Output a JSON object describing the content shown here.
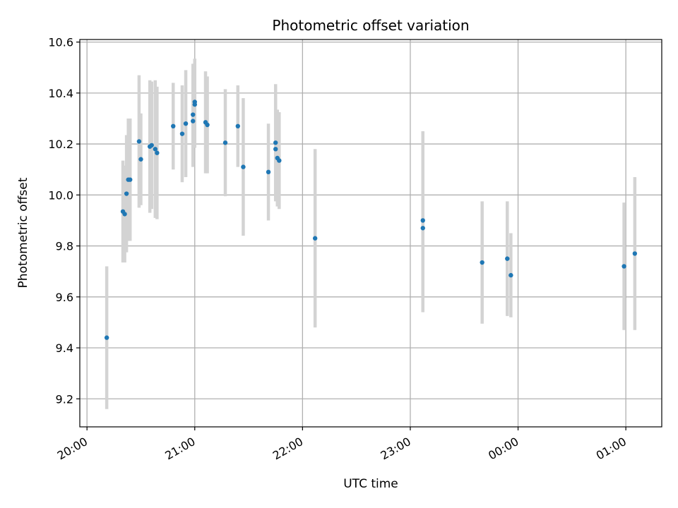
{
  "chart_data": {
    "type": "scatter",
    "title": "Photometric offset variation",
    "xlabel": "UTC time",
    "ylabel": "Photometric offset",
    "x_unit": "UTC time (HH:MM)",
    "xlim": [
      "19:56",
      "01:20"
    ],
    "ylim": [
      9.09,
      10.61
    ],
    "x_ticks": [
      "20:00",
      "21:00",
      "22:00",
      "23:00",
      "00:00",
      "01:00"
    ],
    "y_ticks": [
      "9.2",
      "9.4",
      "9.6",
      "9.8",
      "10.0",
      "10.2",
      "10.4",
      "10.6"
    ],
    "grid": true,
    "colors": {
      "marker": "#1f77b4",
      "errorbar": "#d3d3d3",
      "grid": "#b0b0b0"
    },
    "points": [
      {
        "t": "20:11",
        "y": 9.44,
        "yerr": 0.28
      },
      {
        "t": "20:20",
        "y": 9.935,
        "yerr": 0.2
      },
      {
        "t": "20:21",
        "y": 9.925,
        "yerr": 0.19
      },
      {
        "t": "20:22",
        "y": 10.005,
        "yerr": 0.23
      },
      {
        "t": "20:23",
        "y": 10.06,
        "yerr": 0.24
      },
      {
        "t": "20:24",
        "y": 10.06,
        "yerr": 0.24
      },
      {
        "t": "20:29",
        "y": 10.21,
        "yerr": 0.26
      },
      {
        "t": "20:30",
        "y": 10.14,
        "yerr": 0.18
      },
      {
        "t": "20:35",
        "y": 10.19,
        "yerr": 0.26
      },
      {
        "t": "20:36",
        "y": 10.195,
        "yerr": 0.25
      },
      {
        "t": "20:38",
        "y": 10.18,
        "yerr": 0.27
      },
      {
        "t": "20:39",
        "y": 10.165,
        "yerr": 0.26
      },
      {
        "t": "20:48",
        "y": 10.27,
        "yerr": 0.17
      },
      {
        "t": "20:53",
        "y": 10.24,
        "yerr": 0.19
      },
      {
        "t": "20:55",
        "y": 10.28,
        "yerr": 0.21
      },
      {
        "t": "20:59",
        "y": 10.315,
        "yerr": 0.2
      },
      {
        "t": "21:00",
        "y": 10.355,
        "yerr": 0.17
      },
      {
        "t": "21:00",
        "y": 10.365,
        "yerr": 0.17
      },
      {
        "t": "20:59",
        "y": 10.29,
        "yerr": 0.18
      },
      {
        "t": "21:06",
        "y": 10.285,
        "yerr": 0.2
      },
      {
        "t": "21:07",
        "y": 10.275,
        "yerr": 0.19
      },
      {
        "t": "21:17",
        "y": 10.205,
        "yerr": 0.21
      },
      {
        "t": "21:24",
        "y": 10.27,
        "yerr": 0.16
      },
      {
        "t": "21:27",
        "y": 10.11,
        "yerr": 0.27
      },
      {
        "t": "21:41",
        "y": 10.09,
        "yerr": 0.19
      },
      {
        "t": "21:45",
        "y": 10.18,
        "yerr": 0.2
      },
      {
        "t": "21:45",
        "y": 10.205,
        "yerr": 0.23
      },
      {
        "t": "21:46",
        "y": 10.145,
        "yerr": 0.19
      },
      {
        "t": "21:47",
        "y": 10.135,
        "yerr": 0.19
      },
      {
        "t": "22:07",
        "y": 9.83,
        "yerr": 0.35
      },
      {
        "t": "23:07",
        "y": 9.9,
        "yerr": 0.35
      },
      {
        "t": "23:07",
        "y": 9.87,
        "yerr": 0.33
      },
      {
        "t": "23:40",
        "y": 9.735,
        "yerr": 0.24
      },
      {
        "t": "23:54",
        "y": 9.75,
        "yerr": 0.225
      },
      {
        "t": "23:56",
        "y": 9.685,
        "yerr": 0.165
      },
      {
        "t": "00:59",
        "y": 9.72,
        "yerr": 0.25
      },
      {
        "t": "01:05",
        "y": 9.77,
        "yerr": 0.3
      }
    ]
  }
}
